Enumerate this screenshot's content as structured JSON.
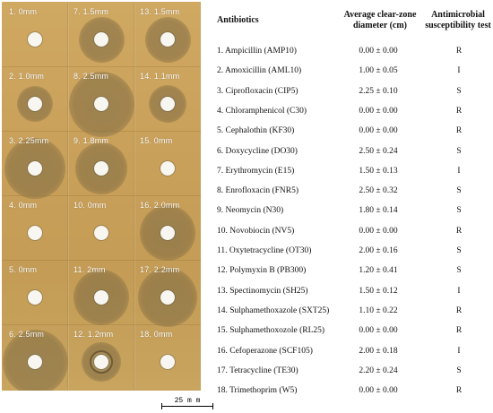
{
  "photo": {
    "labels": [
      "1. 0mm",
      "7. 1.5mm",
      "13. 1.5mm",
      "2. 1.0mm",
      "8. 2.5mm",
      "14. 1.1mm",
      "3. 2.25mm",
      "9. 1.8mm",
      "15. 0mm",
      "4. 0mm",
      "10. 0mm",
      "16. 2.0mm",
      "5. 0mm",
      "11. 2mm",
      "17. 2.2mm",
      "6. 2.5mm",
      "12. 1.2mm",
      "18. 0mm"
    ],
    "zone_mm": [
      0,
      1.5,
      1.5,
      1.0,
      2.5,
      1.1,
      2.25,
      1.8,
      0,
      0,
      0,
      2.0,
      0,
      2.0,
      2.2,
      2.5,
      1.2,
      0
    ],
    "scale_bar": "25 m m"
  },
  "table": {
    "headers": {
      "antibiotics": "Antibiotics",
      "zone": "Average clear-zone diameter (cm)",
      "test": "Antimicrobial susceptibility test"
    },
    "rows": [
      {
        "name": "1. Ampicillin (AMP10)",
        "diameter": "0.00 ± 0.00",
        "result": "R"
      },
      {
        "name": "2. Amoxicillin (AML10)",
        "diameter": "1.00 ± 0.05",
        "result": "I"
      },
      {
        "name": "3. Ciprofloxacin (CIP5)",
        "diameter": "2.25 ± 0.10",
        "result": "S"
      },
      {
        "name": "4. Chloramphenicol (C30)",
        "diameter": "0.00 ± 0.00",
        "result": "R"
      },
      {
        "name": "5. Cephalothin (KF30)",
        "diameter": "0.00 ± 0.00",
        "result": "R"
      },
      {
        "name": "6. Doxycycline (DO30)",
        "diameter": "2.50 ± 0.24",
        "result": "S"
      },
      {
        "name": "7. Erythromycin (E15)",
        "diameter": "1.50 ± 0.13",
        "result": "I"
      },
      {
        "name": "8. Enrofloxacin (FNR5)",
        "diameter": "2.50 ± 0.32",
        "result": "S"
      },
      {
        "name": "9. Neomycin (N30)",
        "diameter": "1.80 ± 0.14",
        "result": "S"
      },
      {
        "name": "10. Novobiocin (NV5)",
        "diameter": "0.00 ± 0.00",
        "result": "R"
      },
      {
        "name": "11. Oxytetracycline (OT30)",
        "diameter": "2.00 ± 0.16",
        "result": "S"
      },
      {
        "name": "12. Polymyxin B (PB300)",
        "diameter": "1.20 ± 0.41",
        "result": "S"
      },
      {
        "name": "13. Spectinomycin (SH25)",
        "diameter": "1.50 ± 0.12",
        "result": "I"
      },
      {
        "name": "14. Sulphamethoxazole (SXT25)",
        "diameter": "1.10 ± 0.22",
        "result": "R"
      },
      {
        "name": "15. Sulphamethoxozole (RL25)",
        "diameter": "0.00 ± 0.00",
        "result": "R"
      },
      {
        "name": "16. Cefoperazone (SCF105)",
        "diameter": "2.00 ± 0.18",
        "result": "I"
      },
      {
        "name": "17. Tetracycline (TE30)",
        "diameter": "2.20 ± 0.24",
        "result": "S"
      },
      {
        "name": "18. Trimethoprim (W5)",
        "diameter": "0.00 ± 0.00",
        "result": "R"
      }
    ]
  }
}
